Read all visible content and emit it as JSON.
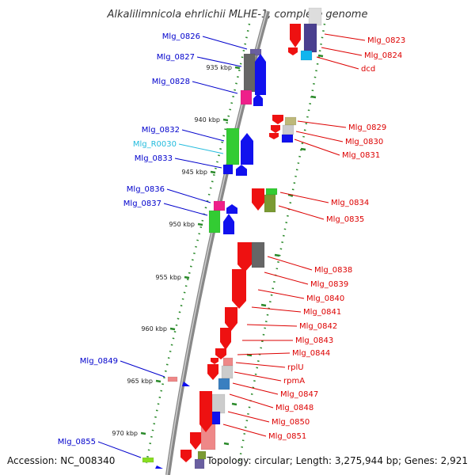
{
  "title": "Alkalilimnicola ehrlichii MLHE-1, complete genome",
  "footer": {
    "accession": "Accession: NC_008340",
    "topology": "Topology: circular; Length: 3,275,944 bp; Genes: 2,921"
  },
  "colors": {
    "forward_label": "#0000cc",
    "reverse_label": "#dd0000",
    "rna_label": "#22bbdd",
    "backbone": "#888888",
    "scale_dots": "#2a8a2a"
  },
  "scale": {
    "ticks": [
      "935 kbp",
      "940 kbp",
      "945 kbp",
      "950 kbp",
      "955 kbp",
      "960 kbp",
      "965 kbp",
      "970 kbp"
    ]
  },
  "genes_left": [
    {
      "name": "Mlg_0826",
      "type": "forward"
    },
    {
      "name": "Mlg_0827",
      "type": "forward"
    },
    {
      "name": "Mlg_0828",
      "type": "forward"
    },
    {
      "name": "Mlg_0832",
      "type": "forward"
    },
    {
      "name": "Mlg_R0030",
      "type": "rna"
    },
    {
      "name": "Mlg_0833",
      "type": "forward"
    },
    {
      "name": "Mlg_0836",
      "type": "forward"
    },
    {
      "name": "Mlg_0837",
      "type": "forward"
    },
    {
      "name": "Mlg_0849",
      "type": "forward"
    },
    {
      "name": "Mlg_0855",
      "type": "forward"
    }
  ],
  "genes_right": [
    {
      "name": "Mlg_0823",
      "type": "reverse"
    },
    {
      "name": "Mlg_0824",
      "type": "reverse"
    },
    {
      "name": "dcd",
      "type": "reverse"
    },
    {
      "name": "Mlg_0829",
      "type": "reverse"
    },
    {
      "name": "Mlg_0830",
      "type": "reverse"
    },
    {
      "name": "Mlg_0831",
      "type": "reverse"
    },
    {
      "name": "Mlg_0834",
      "type": "reverse"
    },
    {
      "name": "Mlg_0835",
      "type": "reverse"
    },
    {
      "name": "Mlg_0838",
      "type": "reverse"
    },
    {
      "name": "Mlg_0839",
      "type": "reverse"
    },
    {
      "name": "Mlg_0840",
      "type": "reverse"
    },
    {
      "name": "Mlg_0841",
      "type": "reverse"
    },
    {
      "name": "Mlg_0842",
      "type": "reverse"
    },
    {
      "name": "Mlg_0843",
      "type": "reverse"
    },
    {
      "name": "Mlg_0844",
      "type": "reverse"
    },
    {
      "name": "rplU",
      "type": "reverse"
    },
    {
      "name": "rpmA",
      "type": "reverse"
    },
    {
      "name": "Mlg_0847",
      "type": "reverse"
    },
    {
      "name": "Mlg_0848",
      "type": "reverse"
    },
    {
      "name": "Mlg_0850",
      "type": "reverse"
    },
    {
      "name": "Mlg_0851",
      "type": "reverse"
    }
  ]
}
